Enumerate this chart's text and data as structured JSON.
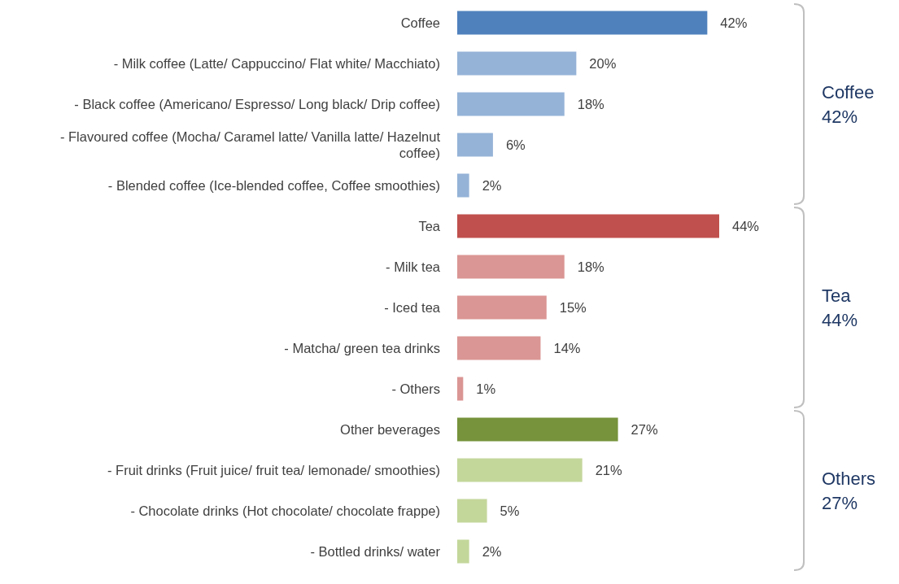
{
  "chart_data": {
    "type": "bar",
    "orientation": "horizontal",
    "categories": [
      "Coffee",
      "- Milk coffee (Latte/ Cappuccino/ Flat white/ Macchiato)",
      "- Black coffee (Americano/ Espresso/ Long black/ Drip coffee)",
      "- Flavoured coffee (Mocha/ Caramel latte/ Vanilla latte/ Hazelnut coffee)",
      "- Blended coffee (Ice-blended coffee, Coffee smoothies)",
      "Tea",
      "- Milk tea",
      "- Iced tea",
      "- Matcha/ green tea drinks",
      "- Others",
      "Other beverages",
      "- Fruit drinks (Fruit juice/ fruit tea/ lemonade/ smoothies)",
      "- Chocolate drinks (Hot chocolate/ chocolate frappe)",
      "- Bottled drinks/ water"
    ],
    "values": [
      42,
      20,
      18,
      6,
      2,
      44,
      18,
      15,
      14,
      1,
      27,
      21,
      5,
      2
    ],
    "colors": [
      "#4f81bd",
      "#95b3d7",
      "#95b3d7",
      "#95b3d7",
      "#95b3d7",
      "#c0504d",
      "#da9694",
      "#da9694",
      "#da9694",
      "#da9694",
      "#77933c",
      "#c4d79b",
      "#c4d79b",
      "#c4d79b"
    ],
    "value_labels": [
      "42%",
      "20%",
      "18%",
      "6%",
      "2%",
      "44%",
      "18%",
      "15%",
      "14%",
      "1%",
      "27%",
      "21%",
      "5%",
      "2%"
    ],
    "annotations": [
      "Coffee\n42%",
      "Tea\n44%",
      "Others\n27%"
    ]
  }
}
